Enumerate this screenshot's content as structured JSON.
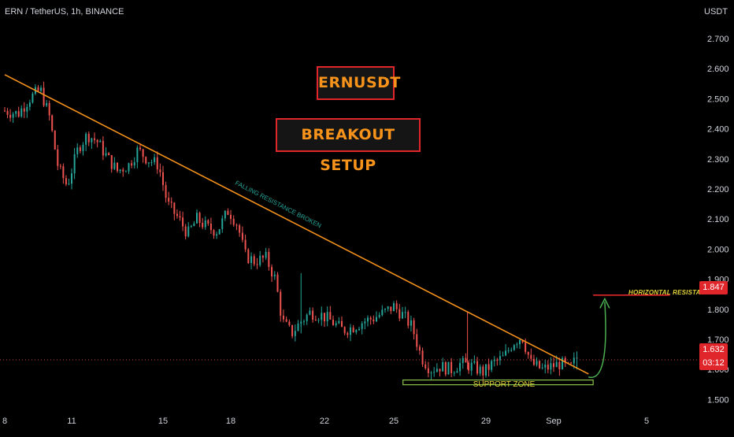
{
  "header": {
    "symbol_info": "ERN / TetherUS, 1h, BINANCE",
    "currency": "USDT"
  },
  "annotations": {
    "title_1": "ERNUSDT",
    "title_2": "BREAKOUT SETUP",
    "trendline_label": "FALLING RESISTANCE BROKEN",
    "support_label": "SUPPORT ZONE",
    "resistance_label": "HORIZONTAL RESISTANCE"
  },
  "price_tags": {
    "resistance": "1.847",
    "current_price": "1.632",
    "countdown": "03:12"
  },
  "colors": {
    "background": "#000000",
    "up_candle": "#26a69a",
    "down_candle": "#ef5350",
    "trendline": "#f7931a",
    "title_border": "#e0262b",
    "title_text": "#f7931a",
    "support_zone": "#8bc34a",
    "resistance_line": "#e0262b",
    "annotation_text": "#e3d23b",
    "arrow": "#4caf50",
    "axis_text": "#d1d4dc"
  },
  "chart_data": {
    "type": "candlestick",
    "interval": "1h",
    "ylim": [
      1.45,
      2.75
    ],
    "ytick_labels": [
      "2.700",
      "2.600",
      "2.500",
      "2.400",
      "2.300",
      "2.200",
      "2.100",
      "2.000",
      "1.900",
      "1.800",
      "1.700",
      "1.600",
      "1.500"
    ],
    "xtick_labels": [
      "8",
      "11",
      "15",
      "18",
      "22",
      "25",
      "29",
      "Sep",
      "5"
    ],
    "x_domain": [
      8,
      37
    ],
    "close_path": [
      {
        "x": 8.0,
        "y": 2.46
      },
      {
        "x": 8.6,
        "y": 2.45
      },
      {
        "x": 9.1,
        "y": 2.5
      },
      {
        "x": 9.6,
        "y": 2.53
      },
      {
        "x": 10.0,
        "y": 2.44
      },
      {
        "x": 10.4,
        "y": 2.27
      },
      {
        "x": 10.8,
        "y": 2.21
      },
      {
        "x": 11.3,
        "y": 2.34
      },
      {
        "x": 11.7,
        "y": 2.38
      },
      {
        "x": 12.1,
        "y": 2.36
      },
      {
        "x": 12.6,
        "y": 2.3
      },
      {
        "x": 13.0,
        "y": 2.26
      },
      {
        "x": 13.5,
        "y": 2.28
      },
      {
        "x": 13.9,
        "y": 2.33
      },
      {
        "x": 14.3,
        "y": 2.3
      },
      {
        "x": 14.8,
        "y": 2.28
      },
      {
        "x": 15.2,
        "y": 2.15
      },
      {
        "x": 15.7,
        "y": 2.1
      },
      {
        "x": 16.1,
        "y": 2.05
      },
      {
        "x": 16.5,
        "y": 2.1
      },
      {
        "x": 17.0,
        "y": 2.07
      },
      {
        "x": 17.4,
        "y": 2.06
      },
      {
        "x": 17.9,
        "y": 2.13
      },
      {
        "x": 18.3,
        "y": 2.08
      },
      {
        "x": 18.6,
        "y": 1.98
      },
      {
        "x": 19.0,
        "y": 1.96
      },
      {
        "x": 19.5,
        "y": 1.97
      },
      {
        "x": 19.9,
        "y": 1.9
      },
      {
        "x": 20.2,
        "y": 1.76
      },
      {
        "x": 20.6,
        "y": 1.72
      },
      {
        "x": 21.0,
        "y": 1.76
      },
      {
        "x": 21.4,
        "y": 1.79
      },
      {
        "x": 21.9,
        "y": 1.78
      },
      {
        "x": 22.3,
        "y": 1.76
      },
      {
        "x": 22.8,
        "y": 1.73
      },
      {
        "x": 23.2,
        "y": 1.74
      },
      {
        "x": 23.7,
        "y": 1.76
      },
      {
        "x": 24.1,
        "y": 1.77
      },
      {
        "x": 24.6,
        "y": 1.79
      },
      {
        "x": 25.0,
        "y": 1.81
      },
      {
        "x": 25.4,
        "y": 1.78
      },
      {
        "x": 25.8,
        "y": 1.74
      },
      {
        "x": 26.2,
        "y": 1.64
      },
      {
        "x": 26.6,
        "y": 1.6
      },
      {
        "x": 27.0,
        "y": 1.61
      },
      {
        "x": 27.5,
        "y": 1.6
      },
      {
        "x": 27.9,
        "y": 1.62
      },
      {
        "x": 28.4,
        "y": 1.61
      },
      {
        "x": 28.9,
        "y": 1.59
      },
      {
        "x": 29.3,
        "y": 1.62
      },
      {
        "x": 29.8,
        "y": 1.64
      },
      {
        "x": 30.2,
        "y": 1.69
      },
      {
        "x": 30.6,
        "y": 1.71
      },
      {
        "x": 31.0,
        "y": 1.62
      },
      {
        "x": 31.5,
        "y": 1.6
      },
      {
        "x": 31.9,
        "y": 1.61
      },
      {
        "x": 32.3,
        "y": 1.62
      },
      {
        "x": 32.7,
        "y": 1.6
      },
      {
        "x": 33.0,
        "y": 1.64
      }
    ],
    "falling_resistance": [
      {
        "x": 8.0,
        "y": 2.58
      },
      {
        "x": 33.5,
        "y": 1.585
      }
    ],
    "support_zone": {
      "x_start": 25.4,
      "x_end": 33.7,
      "y": 1.557
    },
    "horizontal_resistance": {
      "x_start": 33.7,
      "x_end": 37.0,
      "y": 1.847
    },
    "breakout_arrow": {
      "x_start": 33.5,
      "x_end": 34.2,
      "y_start": 1.575,
      "y_end": 1.835
    },
    "current_price": 1.632
  }
}
